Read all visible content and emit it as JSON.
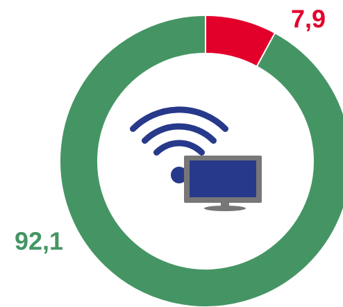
{
  "chart_data": {
    "type": "donut",
    "values": [
      7.9,
      92.1
    ],
    "value_labels": [
      "7,9",
      "92,1"
    ],
    "colors": [
      "#e2002b",
      "#459564"
    ]
  }
}
